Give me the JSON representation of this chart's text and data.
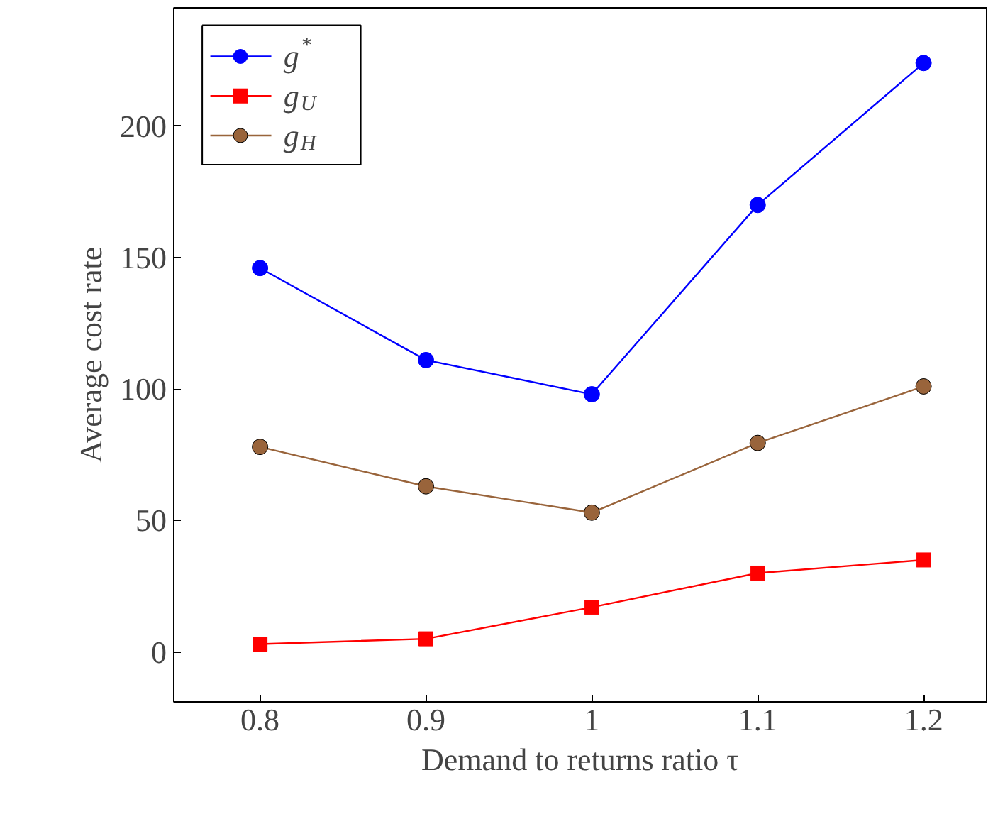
{
  "chart_data": {
    "type": "line",
    "xlabel": "Demand to returns ratio τ",
    "ylabel": "Average cost rate",
    "x": [
      0.8,
      0.9,
      1.0,
      1.1,
      1.2
    ],
    "series": [
      {
        "name": "g$^{*}$",
        "color": "#0000ff",
        "marker": "circle",
        "values": [
          146,
          111,
          98,
          170,
          224
        ]
      },
      {
        "name": "g$_{U}$",
        "color": "#ff0000",
        "marker": "square",
        "values": [
          3,
          5,
          17,
          30,
          35
        ]
      },
      {
        "name": "g$_{H}$",
        "color": "#99643b",
        "marker": "circle",
        "values": [
          78,
          63,
          53,
          79.5,
          101
        ]
      }
    ],
    "xlim": [
      0.748,
      1.238
    ],
    "ylim": [
      -19,
      245
    ],
    "xticks": [
      0.8,
      0.9,
      1,
      1.1,
      1.2
    ],
    "yticks": [
      0,
      50,
      100,
      150,
      200
    ],
    "grid": false,
    "legend": "top left",
    "line_style": "solid"
  }
}
